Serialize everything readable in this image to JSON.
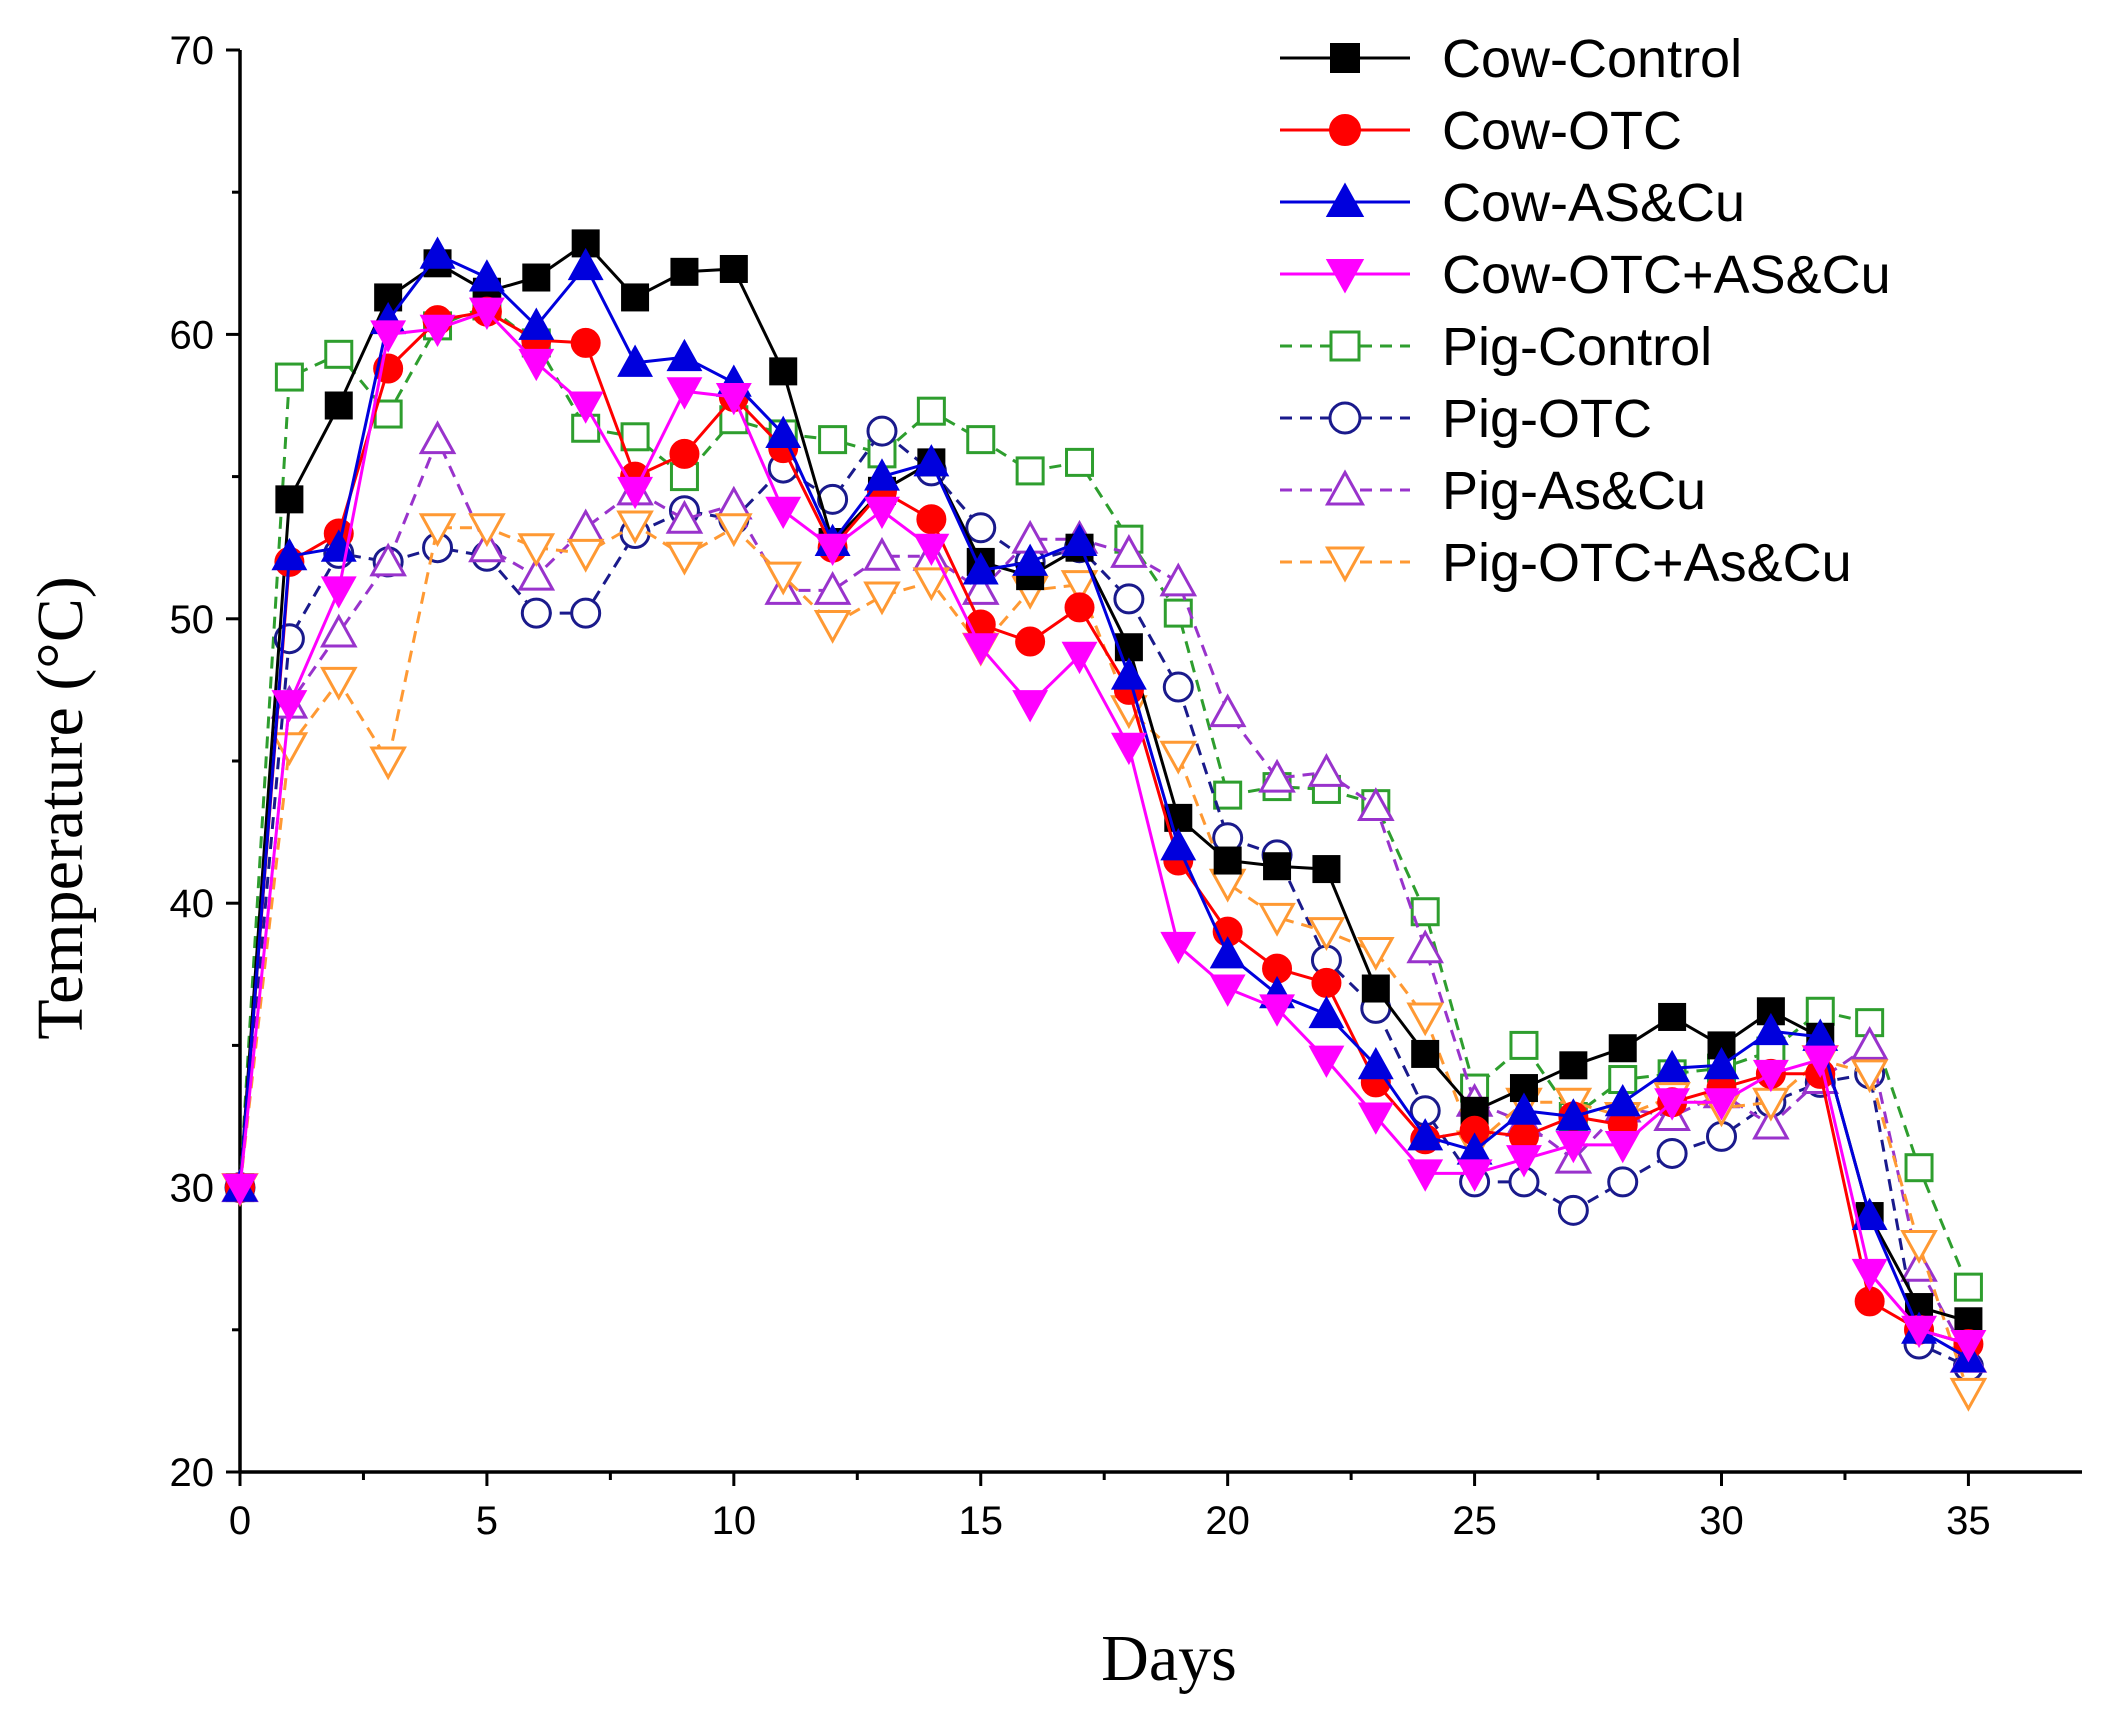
{
  "chart_data": {
    "type": "line",
    "title": "",
    "xlabel": "Days",
    "ylabel": "Temperature (°C)",
    "xlim": [
      0,
      37.3
    ],
    "ylim": [
      20,
      70
    ],
    "x_ticks": [
      0,
      5,
      10,
      15,
      20,
      25,
      30,
      35
    ],
    "x_tick_labels": [
      "0",
      "5",
      "10",
      "15",
      "20",
      "25",
      "30",
      "35"
    ],
    "y_ticks": [
      20,
      30,
      40,
      50,
      60,
      70
    ],
    "y_tick_labels": [
      "20",
      "30",
      "40",
      "50",
      "60",
      "70"
    ],
    "grid": false,
    "legend_position": "top-right",
    "x": [
      0,
      1,
      2,
      3,
      4,
      5,
      6,
      7,
      8,
      9,
      10,
      11,
      12,
      13,
      14,
      15,
      16,
      17,
      18,
      19,
      20,
      21,
      22,
      23,
      24,
      25,
      26,
      27,
      28,
      29,
      30,
      31,
      32,
      33,
      34,
      35
    ],
    "series": [
      {
        "name": "Cow-Control",
        "color": "#000000",
        "line_style": "solid",
        "marker": "square",
        "filled": true,
        "values": [
          30,
          54.2,
          57.5,
          61.3,
          62.5,
          61.5,
          62,
          63.2,
          61.3,
          62.2,
          62.3,
          58.7,
          52.7,
          54.5,
          55.5,
          52,
          51.5,
          52.5,
          49,
          43,
          41.5,
          41.3,
          41.2,
          37,
          34.7,
          32.7,
          33.5,
          34.3,
          34.9,
          36,
          35,
          36.2,
          35.3,
          29,
          25.8,
          25.3
        ]
      },
      {
        "name": "Cow-OTC",
        "color": "#ff0000",
        "line_style": "solid",
        "marker": "circle",
        "filled": true,
        "values": [
          30,
          52,
          53,
          58.8,
          60.5,
          60.8,
          59.8,
          59.7,
          55,
          55.8,
          57.8,
          56,
          52.5,
          54.5,
          53.5,
          49.8,
          49.2,
          50.4,
          47.5,
          41.5,
          39,
          37.7,
          37.2,
          33.7,
          31.7,
          32,
          31.8,
          32.5,
          32.2,
          33,
          33.5,
          34,
          34,
          26,
          25,
          24.5
        ]
      },
      {
        "name": "Cow-AS&Cu",
        "color": "#0000dd",
        "line_style": "solid",
        "marker": "triangle-up",
        "filled": true,
        "values": [
          30,
          52.2,
          52.5,
          60.5,
          62.8,
          62,
          60.3,
          62.4,
          59,
          59.2,
          58.3,
          56.5,
          52.7,
          55,
          55.5,
          51.7,
          52,
          52.7,
          48,
          42,
          38.2,
          36.8,
          36.1,
          34.3,
          31.8,
          31.3,
          32.7,
          32.5,
          33,
          34.2,
          34.3,
          35.5,
          35.3,
          29,
          25,
          24
        ]
      },
      {
        "name": "Cow-OTC+AS&Cu",
        "color": "#ff00ff",
        "line_style": "solid",
        "marker": "triangle-down",
        "filled": true,
        "values": [
          30,
          47,
          51,
          60,
          60.2,
          60.8,
          59,
          57.5,
          54.5,
          58,
          57.8,
          53.8,
          52.5,
          53.8,
          52.5,
          49,
          47,
          48.7,
          45.5,
          38.5,
          37,
          36.3,
          34.5,
          32.5,
          30.5,
          30.5,
          31,
          31.5,
          31.5,
          33,
          33,
          34,
          34.5,
          27,
          25,
          24.5
        ]
      },
      {
        "name": "Pig-Control",
        "color": "#2e9e2e",
        "line_style": "dashed",
        "marker": "square",
        "filled": false,
        "values": [
          30,
          58.5,
          59.3,
          57.2,
          60.3,
          61,
          59.7,
          56.7,
          56.4,
          55,
          57,
          56.5,
          56.3,
          55.8,
          57.3,
          56.3,
          55.2,
          55.5,
          52.8,
          50.2,
          43.8,
          44.1,
          44,
          43.5,
          39.7,
          33.5,
          35,
          32.5,
          33.8,
          34,
          34.2,
          34.8,
          36.2,
          35.8,
          30.7,
          26.5
        ]
      },
      {
        "name": "Pig-OTC",
        "color": "#1a1a8c",
        "line_style": "dashed",
        "marker": "circle",
        "filled": false,
        "values": [
          30,
          49.3,
          52.3,
          52,
          52.5,
          52.2,
          50.2,
          50.2,
          53,
          53.8,
          53.5,
          55.3,
          54.2,
          56.6,
          55.2,
          53.2,
          52,
          52.5,
          50.7,
          47.6,
          42.3,
          41.7,
          38,
          36.3,
          32.7,
          30.2,
          30.2,
          29.2,
          30.2,
          31.2,
          31.8,
          33,
          33.7,
          34,
          24.5,
          23.7
        ]
      },
      {
        "name": "Pig-As&Cu",
        "color": "#9933cc",
        "line_style": "dashed",
        "marker": "triangle-up",
        "filled": false,
        "values": [
          30,
          47,
          49.5,
          52,
          56.3,
          52.5,
          51.5,
          53.2,
          54.5,
          53.5,
          54,
          51,
          51,
          52.2,
          52.2,
          51,
          52.8,
          52.8,
          52.3,
          51.3,
          46.7,
          44.4,
          44.6,
          43.4,
          38.4,
          33,
          32.3,
          31,
          32.8,
          32.5,
          33.3,
          32.2,
          33.8,
          35,
          27.2,
          24
        ]
      },
      {
        "name": "Pig-OTC+As&Cu",
        "color": "#ff9933",
        "line_style": "dashed",
        "marker": "triangle-down",
        "filled": false,
        "values": [
          30,
          45.5,
          47.8,
          45,
          53.2,
          53.2,
          52.5,
          52.3,
          53.3,
          52.2,
          53.2,
          51.5,
          49.8,
          50.8,
          51.3,
          49,
          51,
          51.2,
          46.8,
          45.2,
          40.7,
          39.5,
          39,
          38.3,
          36,
          31.5,
          33,
          33,
          32.5,
          33.2,
          32.8,
          33,
          34.5,
          34,
          28,
          22.8
        ]
      }
    ]
  }
}
